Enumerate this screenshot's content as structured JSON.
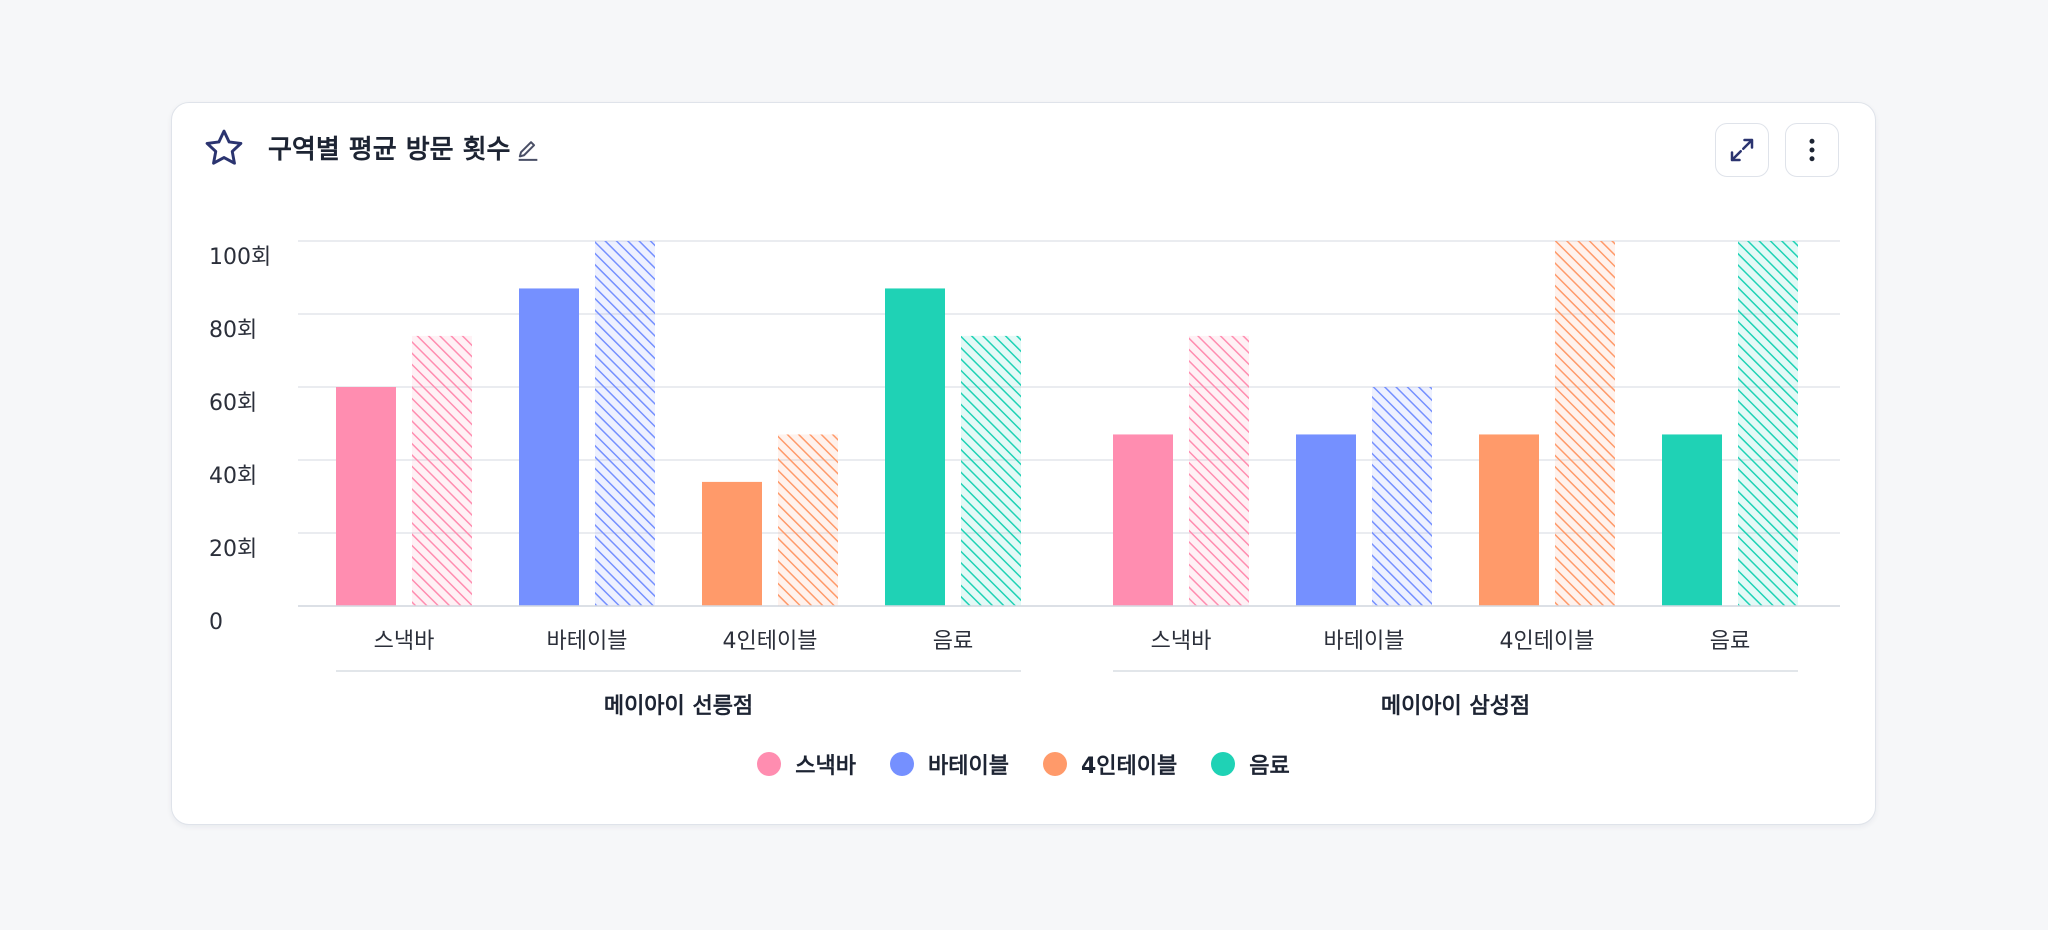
{
  "card": {
    "title": "구역별 평균 방문 횟수"
  },
  "icons": {
    "favorite": "star-icon",
    "edit": "pencil-icon",
    "expand": "expand-icon",
    "more": "more-vertical-icon"
  },
  "colors": {
    "title_icon": "#2b3470",
    "grid": "#e3e6ec",
    "group_divider": "#d9dde4"
  },
  "chart_data": {
    "type": "bar",
    "y_tick_labels": [
      "0",
      "20회",
      "40회",
      "60회",
      "80회",
      "100회"
    ],
    "y_ticks": [
      0,
      20,
      40,
      60,
      80,
      100
    ],
    "ylim": [
      0,
      100
    ],
    "grid": true,
    "legend_position": "bottom-center",
    "series": [
      {
        "name": "스낵바",
        "color": "#ff8db0"
      },
      {
        "name": "바테이블",
        "color": "#7590ff"
      },
      {
        "name": "4인테이블",
        "color": "#ff9a6a"
      },
      {
        "name": "음료",
        "color": "#1fd2b5"
      }
    ],
    "groups": [
      {
        "name": "메이아이 선릉점",
        "categories": [
          "스낵바",
          "바테이블",
          "4인테이블",
          "음료"
        ],
        "solid": [
          60,
          87,
          34,
          87
        ],
        "hatched": [
          74,
          100,
          47,
          74
        ]
      },
      {
        "name": "메이아이 삼성점",
        "categories": [
          "스낵바",
          "바테이블",
          "4인테이블",
          "음료"
        ],
        "solid": [
          47,
          47,
          47,
          47
        ],
        "hatched": [
          74,
          60,
          100,
          100
        ]
      }
    ]
  }
}
